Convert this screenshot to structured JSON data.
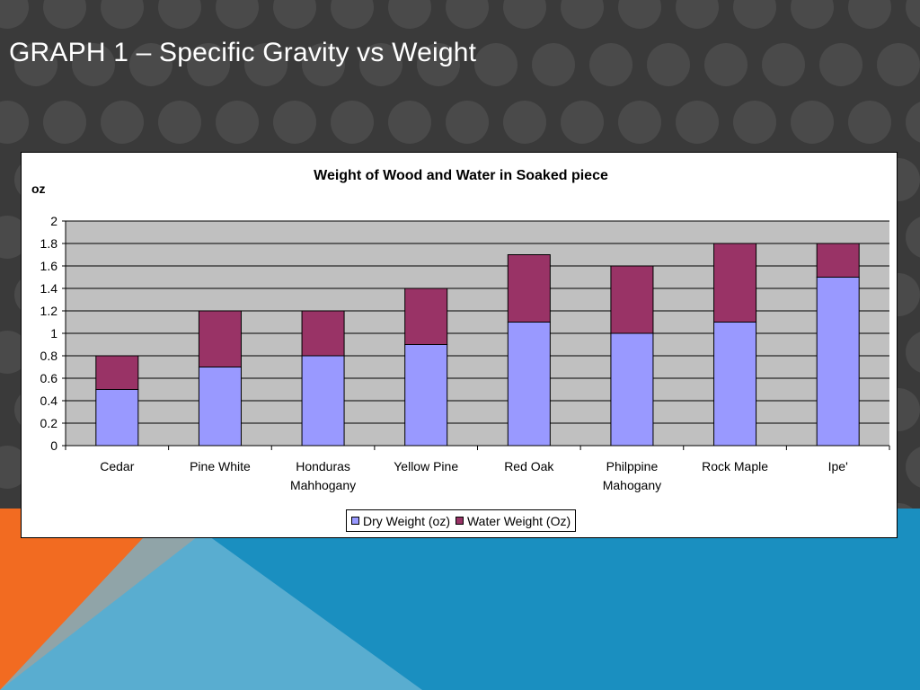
{
  "slide": {
    "title": "GRAPH 1 – Specific Gravity vs Weight"
  },
  "colors": {
    "background": "#3a3a3a",
    "dot": "#4a4a4a",
    "orange": "#f26b21",
    "blue": "#1a8fc0",
    "light_blue": "#6fb7d6",
    "plot_bg": "#c0c0c0",
    "dry": "#9999ff",
    "water": "#993366"
  },
  "chart_data": {
    "type": "bar",
    "stacked": true,
    "title": "Weight of Wood and Water in Soaked piece",
    "ylabel": "oz",
    "xlabel": "",
    "ylim": [
      0,
      2
    ],
    "yticks": [
      "0",
      "0.2",
      "0.4",
      "0.6",
      "0.8",
      "1",
      "1.2",
      "1.4",
      "1.6",
      "1.8",
      "2"
    ],
    "categories": [
      [
        "Cedar"
      ],
      [
        "Pine White"
      ],
      [
        "Honduras",
        "Mahhogany"
      ],
      [
        "Yellow Pine"
      ],
      [
        "Red Oak"
      ],
      [
        "Philppine",
        "Mahogany"
      ],
      [
        "Rock Maple"
      ],
      [
        "Ipe'"
      ]
    ],
    "series": [
      {
        "name": "Dry Weight (oz)",
        "color": "#9999ff",
        "values": [
          0.5,
          0.7,
          0.8,
          0.9,
          1.1,
          1.0,
          1.1,
          1.5
        ]
      },
      {
        "name": "Water Weight (Oz)",
        "color": "#993366",
        "values": [
          0.3,
          0.5,
          0.4,
          0.5,
          0.6,
          0.6,
          0.7,
          0.3
        ]
      }
    ],
    "grid": true,
    "legend_position": "bottom"
  }
}
